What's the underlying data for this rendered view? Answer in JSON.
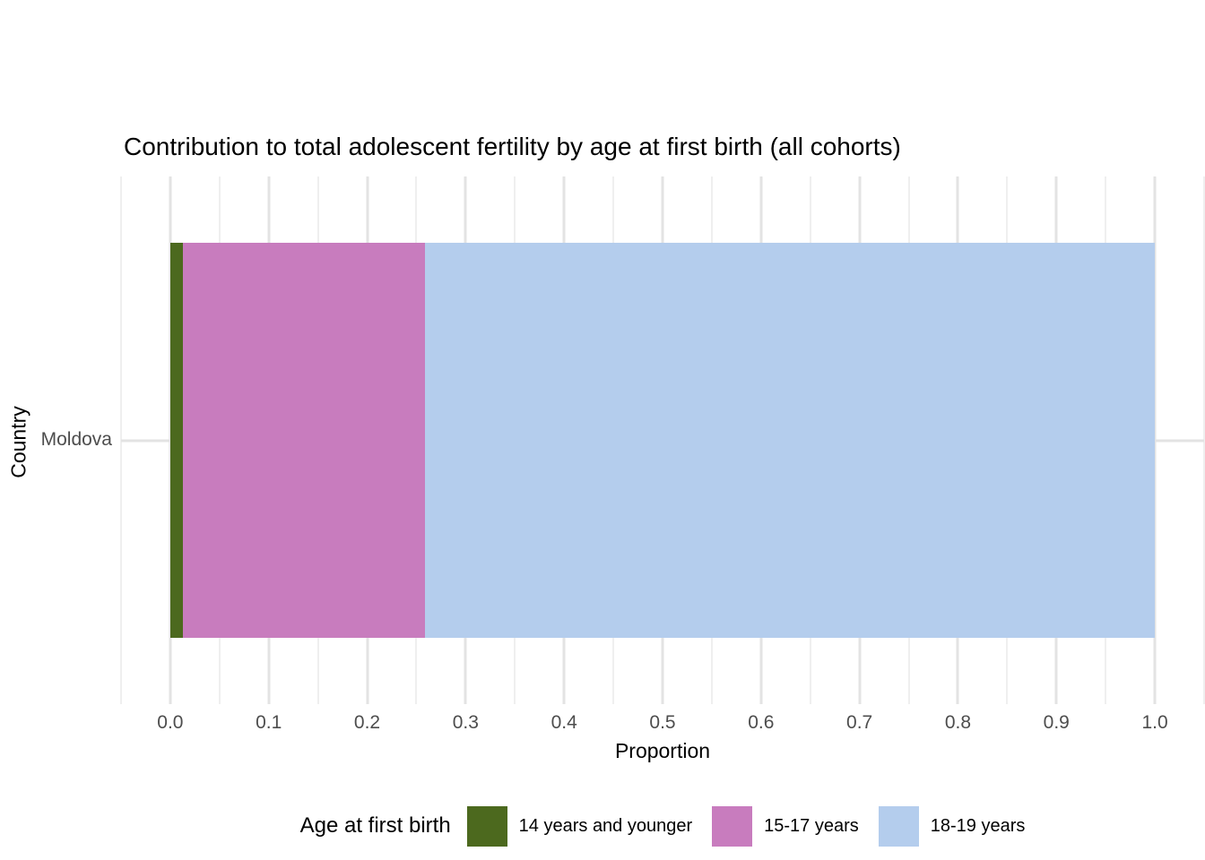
{
  "chart_data": {
    "type": "bar",
    "orientation": "horizontal",
    "stacked": true,
    "title": "Contribution to total adolescent fertility by age at first birth (all cohorts)",
    "xlabel": "Proportion",
    "ylabel": "Country",
    "categories": [
      "Moldova"
    ],
    "series": [
      {
        "name": "14 years and younger",
        "values": [
          0.013
        ],
        "color": "#4c691e"
      },
      {
        "name": "15-17 years",
        "values": [
          0.246
        ],
        "color": "#c87cbe"
      },
      {
        "name": "18-19 years",
        "values": [
          0.741
        ],
        "color": "#b4cded"
      }
    ],
    "xlim": [
      -0.05,
      1.05
    ],
    "x_ticks": [
      {
        "value": 0.0,
        "label": "0.0"
      },
      {
        "value": 0.1,
        "label": "0.1"
      },
      {
        "value": 0.2,
        "label": "0.2"
      },
      {
        "value": 0.3,
        "label": "0.3"
      },
      {
        "value": 0.4,
        "label": "0.4"
      },
      {
        "value": 0.5,
        "label": "0.5"
      },
      {
        "value": 0.6,
        "label": "0.6"
      },
      {
        "value": 0.7,
        "label": "0.7"
      },
      {
        "value": 0.8,
        "label": "0.8"
      },
      {
        "value": 0.9,
        "label": "0.9"
      },
      {
        "value": 1.0,
        "label": "1.0"
      }
    ],
    "minor_tick_step": 0.05,
    "grid": "on",
    "legend_position": "bottom"
  },
  "legend": {
    "title": "Age at first birth"
  },
  "style_colors": {
    "background": "#ffffff",
    "grid_major": "#e3e3e3",
    "grid_minor": "#efefef",
    "tick_text": "#4d4d4d",
    "title_text": "#000000"
  }
}
